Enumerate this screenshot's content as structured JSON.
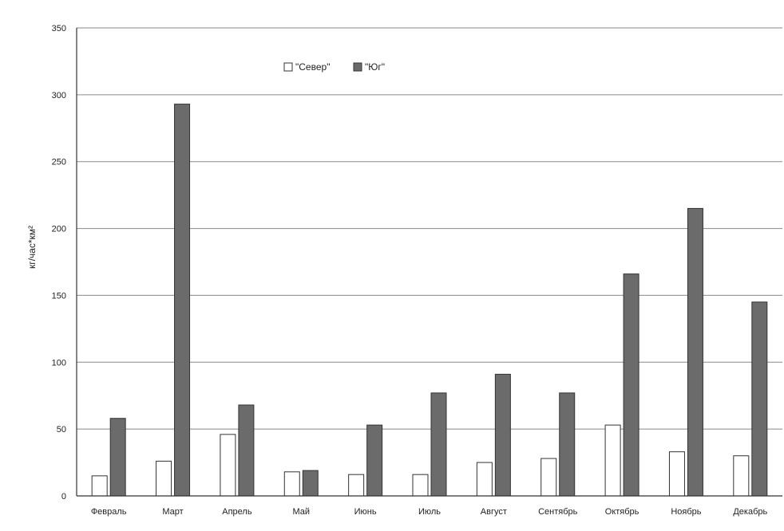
{
  "chart_data": {
    "type": "bar",
    "title": "",
    "xlabel": "",
    "ylabel": "кг/час*км²",
    "ylim": [
      0,
      350
    ],
    "yticks": [
      0,
      50,
      100,
      150,
      200,
      250,
      300,
      350
    ],
    "grid": true,
    "legend": "top-center",
    "categories": [
      "Февраль",
      "Март",
      "Апрель",
      "Май",
      "Июнь",
      "Июль",
      "Август",
      "Сентябрь",
      "Октябрь",
      "Ноябрь",
      "Декабрь"
    ],
    "series": [
      {
        "name": "\"Север\"",
        "color": "#ffffff",
        "values": [
          15,
          26,
          46,
          18,
          16,
          16,
          25,
          28,
          53,
          33,
          30
        ]
      },
      {
        "name": "\"Юг\"",
        "color": "#6b6b6b",
        "values": [
          58,
          293,
          68,
          19,
          53,
          77,
          91,
          77,
          166,
          215,
          145
        ]
      }
    ]
  }
}
